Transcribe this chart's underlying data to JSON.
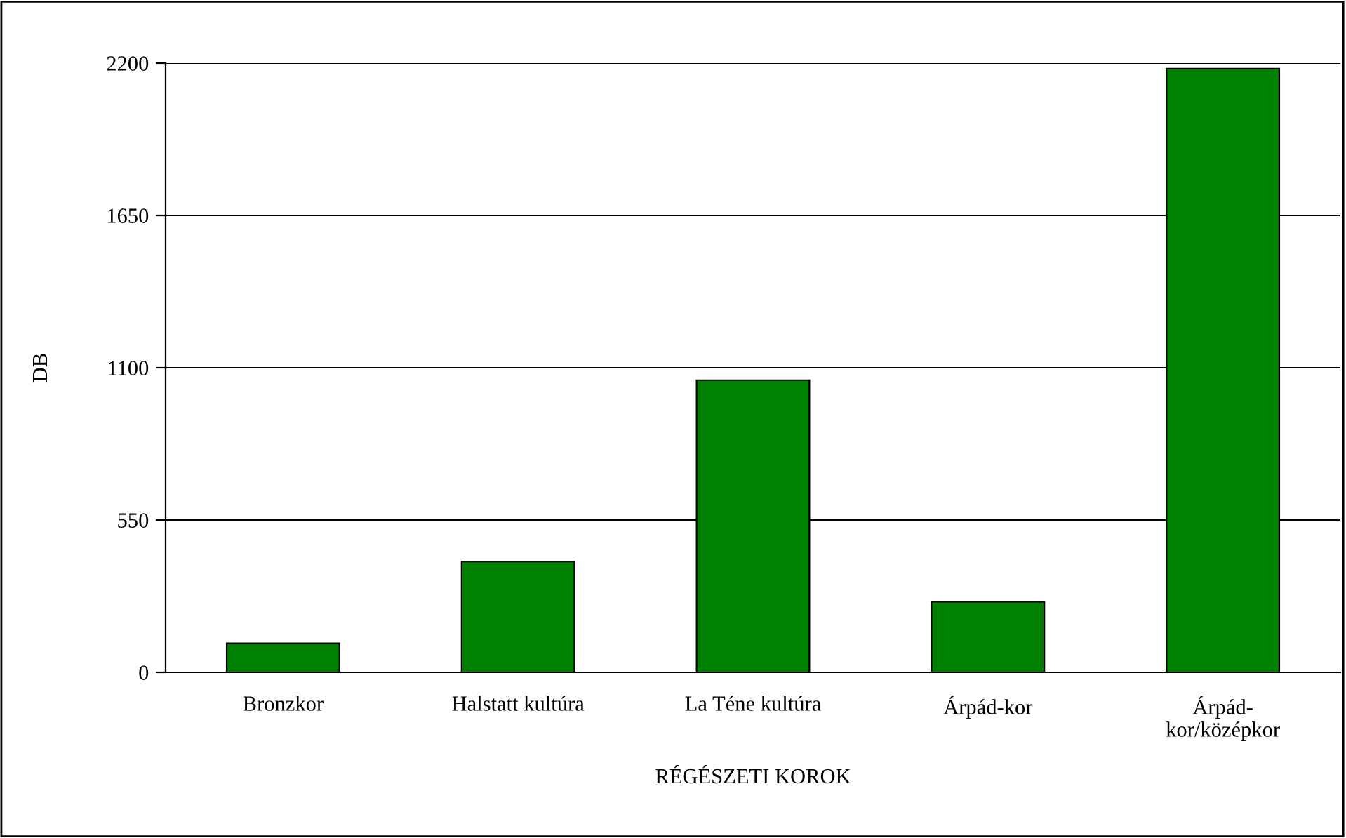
{
  "chart_data": {
    "type": "bar",
    "xlabel": "RÉGÉSZETI KOROK",
    "ylabel": "DB",
    "categories": [
      "Bronzkor",
      "Halstatt kultúra",
      "La Téne kultúra",
      "Árpád-kor",
      "Árpád-kor/középkor"
    ],
    "values": [
      105,
      400,
      1055,
      255,
      2180
    ],
    "color": "#008000",
    "ylim": [
      0,
      2200
    ],
    "yticks": [
      0,
      550,
      1100,
      1650,
      2200
    ],
    "grid": "y",
    "legend": false
  }
}
